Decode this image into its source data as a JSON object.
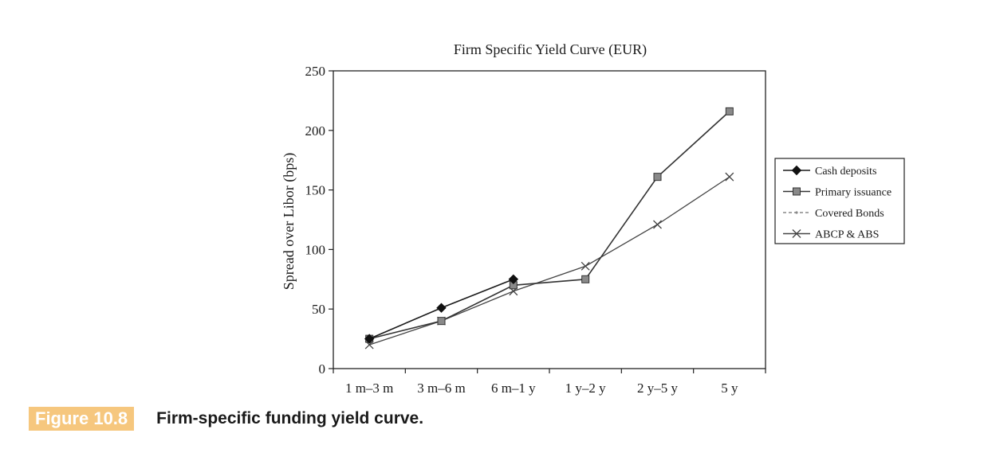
{
  "figure": {
    "label": "Figure 10.8",
    "caption": "Firm-specific funding yield curve."
  },
  "chart_data": {
    "type": "line",
    "title": "Firm Specific Yield Curve (EUR)",
    "xlabel": "",
    "ylabel": "Spread over Libor (bps)",
    "categories": [
      "1 m–3 m",
      "3 m–6 m",
      "6 m–1 y",
      "1 y–2 y",
      "2 y–5 y",
      "5 y"
    ],
    "ylim": [
      0,
      250
    ],
    "yticks": [
      0,
      50,
      100,
      150,
      200,
      250
    ],
    "grid": false,
    "legend_position": "right",
    "series": [
      {
        "name": "Cash deposits",
        "values": [
          25,
          51,
          75,
          null,
          null,
          null
        ],
        "color": "#1a1a1a",
        "marker": "diamond",
        "dash": "solid"
      },
      {
        "name": "Primary issuance",
        "values": [
          25,
          40,
          70,
          75,
          161,
          216
        ],
        "color": "#333333",
        "marker": "square",
        "dash": "solid"
      },
      {
        "name": "Covered Bonds",
        "values": [
          null,
          null,
          null,
          null,
          null,
          null
        ],
        "color": "#888888",
        "marker": "dot",
        "dash": "dashed"
      },
      {
        "name": "ABCP & ABS",
        "values": [
          20,
          40,
          65,
          86,
          121,
          161
        ],
        "color": "#444444",
        "marker": "x",
        "dash": "solid"
      }
    ]
  }
}
